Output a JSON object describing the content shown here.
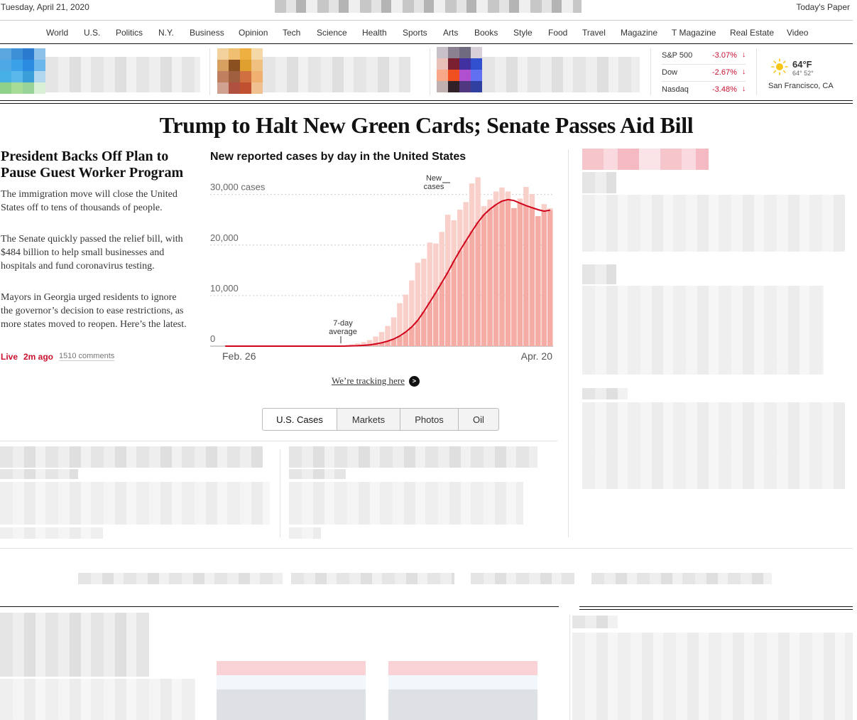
{
  "masthead": {
    "date": "Tuesday, April 21, 2020",
    "todays_paper": "Today's Paper"
  },
  "nav": [
    "World",
    "U.S.",
    "Politics",
    "N.Y.",
    "Business",
    "Opinion",
    "Tech",
    "Science",
    "Health",
    "Sports",
    "Arts",
    "Books",
    "Style",
    "Food",
    "Travel",
    "Magazine",
    "T Magazine",
    "Real Estate",
    "Video"
  ],
  "markets": [
    {
      "name": "S&P 500",
      "change": "-3.07%"
    },
    {
      "name": "Dow",
      "change": "-2.67%"
    },
    {
      "name": "Nasdaq",
      "change": "-3.48%"
    }
  ],
  "weather": {
    "temp": "64°F",
    "hi_lo": "64° 52°",
    "location": "San Francisco, CA",
    "icon": "sun-icon"
  },
  "banner_headline": "Trump to Halt New Green Cards; Senate Passes Aid Bill",
  "lead_story": {
    "headline": "President Backs Off Plan to Pause Guest Worker Program",
    "summaries": [
      "The immigration move will close the United States off to tens of thousands of people.",
      "The Senate quickly passed the relief bill, with $484 billion to help small businesses and hospitals and fund coronavirus testing.",
      "Mayors in Georgia urged residents to ignore the governor’s decision to ease restrictions, as more states moved to reopen. Here’s the latest."
    ],
    "live_label": "Live",
    "time_ago": "2m ago",
    "comments": "1510 comments"
  },
  "tracking_link": "We’re tracking here",
  "chart_tabs": [
    "U.S. Cases",
    "Markets",
    "Photos",
    "Oil"
  ],
  "colors": {
    "bar": "#f4aca4",
    "bar_light": "#f9cfca",
    "average_line": "#d0021b",
    "live": "#c8102e"
  },
  "chart_data": {
    "type": "bar",
    "title": "New reported cases by day in the United States",
    "x_start_label": "Feb. 26",
    "x_end_label": "Apr. 20",
    "y_ticks": [
      0,
      10000,
      20000,
      30000
    ],
    "y_tick_labels": [
      "0",
      "10,000",
      "20,000",
      "30,000 cases"
    ],
    "ylim": [
      0,
      36000
    ],
    "annotations": {
      "new_cases": "New cases",
      "average": "7-day average"
    },
    "series": [
      {
        "name": "New cases",
        "values": [
          0,
          0,
          0,
          0,
          0,
          0,
          0,
          0,
          0,
          0,
          0,
          0,
          0,
          0,
          0,
          0,
          0,
          0,
          0,
          100,
          200,
          350,
          550,
          800,
          1200,
          1900,
          2800,
          4000,
          5700,
          8500,
          10200,
          13000,
          16500,
          17300,
          20500,
          20300,
          22600,
          26000,
          24900,
          27000,
          28500,
          32200,
          33400,
          27700,
          29000,
          30600,
          31400,
          30600,
          27300,
          29200,
          31500,
          30100,
          25700,
          28100,
          27300
        ]
      },
      {
        "name": "7-day average",
        "values": [
          0,
          0,
          0,
          0,
          0,
          0,
          0,
          0,
          0,
          0,
          0,
          0,
          0,
          0,
          0,
          0,
          0,
          0,
          0,
          0,
          20,
          50,
          90,
          150,
          260,
          430,
          660,
          980,
          1400,
          2000,
          2800,
          3800,
          5100,
          6800,
          8700,
          10600,
          12600,
          14600,
          16800,
          18900,
          20800,
          22700,
          24500,
          26000,
          27100,
          28000,
          28700,
          29000,
          28800,
          28300,
          27800,
          27400,
          27000,
          26700,
          26900
        ]
      }
    ]
  }
}
